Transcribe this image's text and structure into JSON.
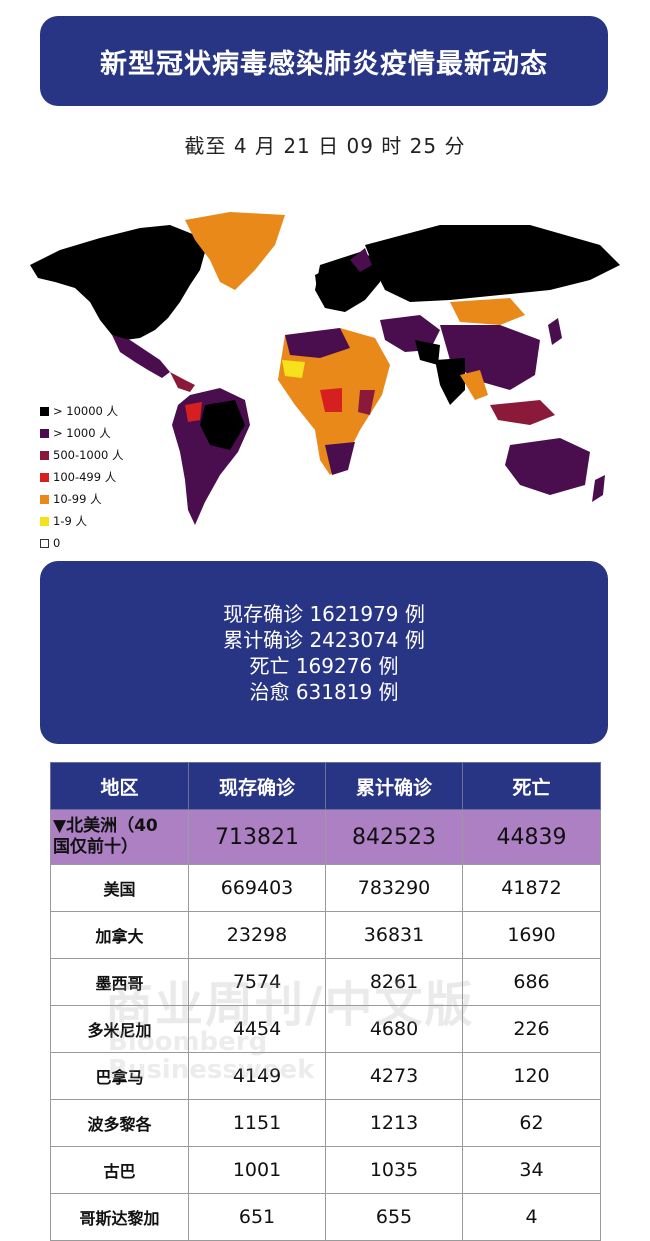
{
  "header": {
    "title": "新型冠状病毒感染肺炎疫情最新动态"
  },
  "timestamp": "截至 4 月 21 日 09 时 25 分",
  "legend": {
    "items": [
      {
        "label": "> 10000 人",
        "color": "#000000"
      },
      {
        "label": "> 1000 人",
        "color": "#4a0e4e"
      },
      {
        "label": "500-1000 人",
        "color": "#8b1a3a"
      },
      {
        "label": "100-499 人",
        "color": "#d62020"
      },
      {
        "label": "10-99 人",
        "color": "#e8891a"
      },
      {
        "label": "1-9 人",
        "color": "#f5e11c"
      },
      {
        "label": "0",
        "color": "#ffffff"
      }
    ]
  },
  "stats": {
    "current": "现存确诊 1621979 例",
    "total": "累计确诊 2423074 例",
    "deaths": "死亡 169276 例",
    "recovered": "治愈 631819 例"
  },
  "table": {
    "headers": [
      "地区",
      "现存确诊",
      "累计确诊",
      "死亡"
    ],
    "summary": {
      "region_line1": "▼北美洲（40",
      "region_line2": "国仅前十）",
      "current": "713821",
      "total": "842523",
      "deaths": "44839"
    },
    "rows": [
      {
        "region": "美国",
        "current": "669403",
        "total": "783290",
        "deaths": "41872"
      },
      {
        "region": "加拿大",
        "current": "23298",
        "total": "36831",
        "deaths": "1690"
      },
      {
        "region": "墨西哥",
        "current": "7574",
        "total": "8261",
        "deaths": "686"
      },
      {
        "region": "多米尼加",
        "current": "4454",
        "total": "4680",
        "deaths": "226"
      },
      {
        "region": "巴拿马",
        "current": "4149",
        "total": "4273",
        "deaths": "120"
      },
      {
        "region": "波多黎各",
        "current": "1151",
        "total": "1213",
        "deaths": "62"
      },
      {
        "region": "古巴",
        "current": "1001",
        "total": "1035",
        "deaths": "34"
      },
      {
        "region": "哥斯达黎加",
        "current": "651",
        "total": "655",
        "deaths": "4"
      }
    ]
  },
  "watermark": {
    "main": "商业周刊/中文版",
    "line1": "Bloomberg",
    "line2": "Businessweek"
  }
}
